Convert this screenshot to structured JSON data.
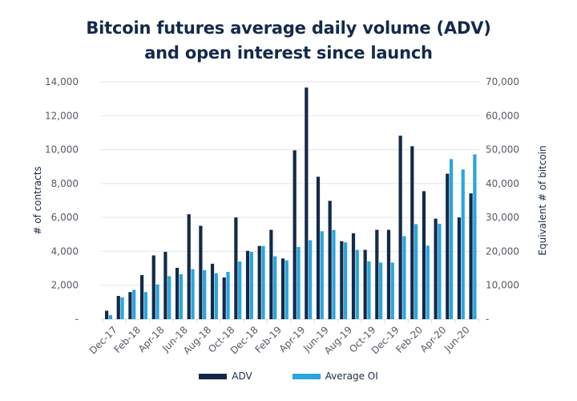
{
  "chart_data": {
    "type": "bar",
    "title_lines": [
      "Bitcoin futures average daily volume (ADV)",
      "and open interest since launch"
    ],
    "ylabel": "# of contracts",
    "y2label": "Equivalent # of bitcoin",
    "ylim": [
      0,
      14000
    ],
    "y2lim": [
      0,
      70000
    ],
    "yticks": [
      "-",
      "2,000",
      "4,000",
      "6,000",
      "8,000",
      "10,000",
      "12,000",
      "14,000"
    ],
    "y2ticks": [
      "-",
      "10,000",
      "20,000",
      "30,000",
      "40,000",
      "50,000",
      "60,000",
      "70,000"
    ],
    "grid": true,
    "legend_position": "bottom",
    "categories": [
      "Dec-17",
      "Jan-18",
      "Feb-18",
      "Mar-18",
      "Apr-18",
      "May-18",
      "Jun-18",
      "Jul-18",
      "Aug-18",
      "Sep-18",
      "Oct-18",
      "Nov-18",
      "Dec-18",
      "Jan-19",
      "Feb-19",
      "Mar-19",
      "Apr-19",
      "May-19",
      "Jun-19",
      "Jul-19",
      "Aug-19",
      "Sep-19",
      "Oct-19",
      "Nov-19",
      "Dec-19",
      "Jan-20",
      "Feb-20",
      "Mar-20",
      "Apr-20",
      "May-20",
      "Jun-20",
      "Jul-20"
    ],
    "xtick_labels": [
      "Dec-17",
      "Feb-18",
      "Apr-18",
      "Jun-18",
      "Aug-18",
      "Oct-18",
      "Dec-18",
      "Feb-19",
      "Apr-19",
      "Jun-19",
      "Aug-19",
      "Oct-19",
      "Dec-19",
      "Feb-20",
      "Apr-20",
      "Jun-20"
    ],
    "series": [
      {
        "name": "ADV",
        "color": "#14294a",
        "values": [
          500,
          1370,
          1600,
          2600,
          3760,
          3970,
          3030,
          6190,
          5510,
          3270,
          2460,
          6000,
          4030,
          4320,
          5270,
          3580,
          9960,
          13660,
          8400,
          6980,
          4600,
          5070,
          4090,
          5270,
          5270,
          10820,
          10200,
          7550,
          5930,
          8580,
          6000,
          7420
        ]
      },
      {
        "name": "Average OI",
        "color": "#2aa5dd",
        "values": [
          240,
          1290,
          1730,
          1600,
          2050,
          2540,
          2650,
          2950,
          2890,
          2710,
          2790,
          3400,
          3970,
          4320,
          3710,
          3470,
          4260,
          4660,
          5190,
          5260,
          4530,
          4090,
          3410,
          3340,
          3340,
          4900,
          5610,
          4340,
          5630,
          9440,
          8830,
          9720
        ]
      }
    ]
  }
}
